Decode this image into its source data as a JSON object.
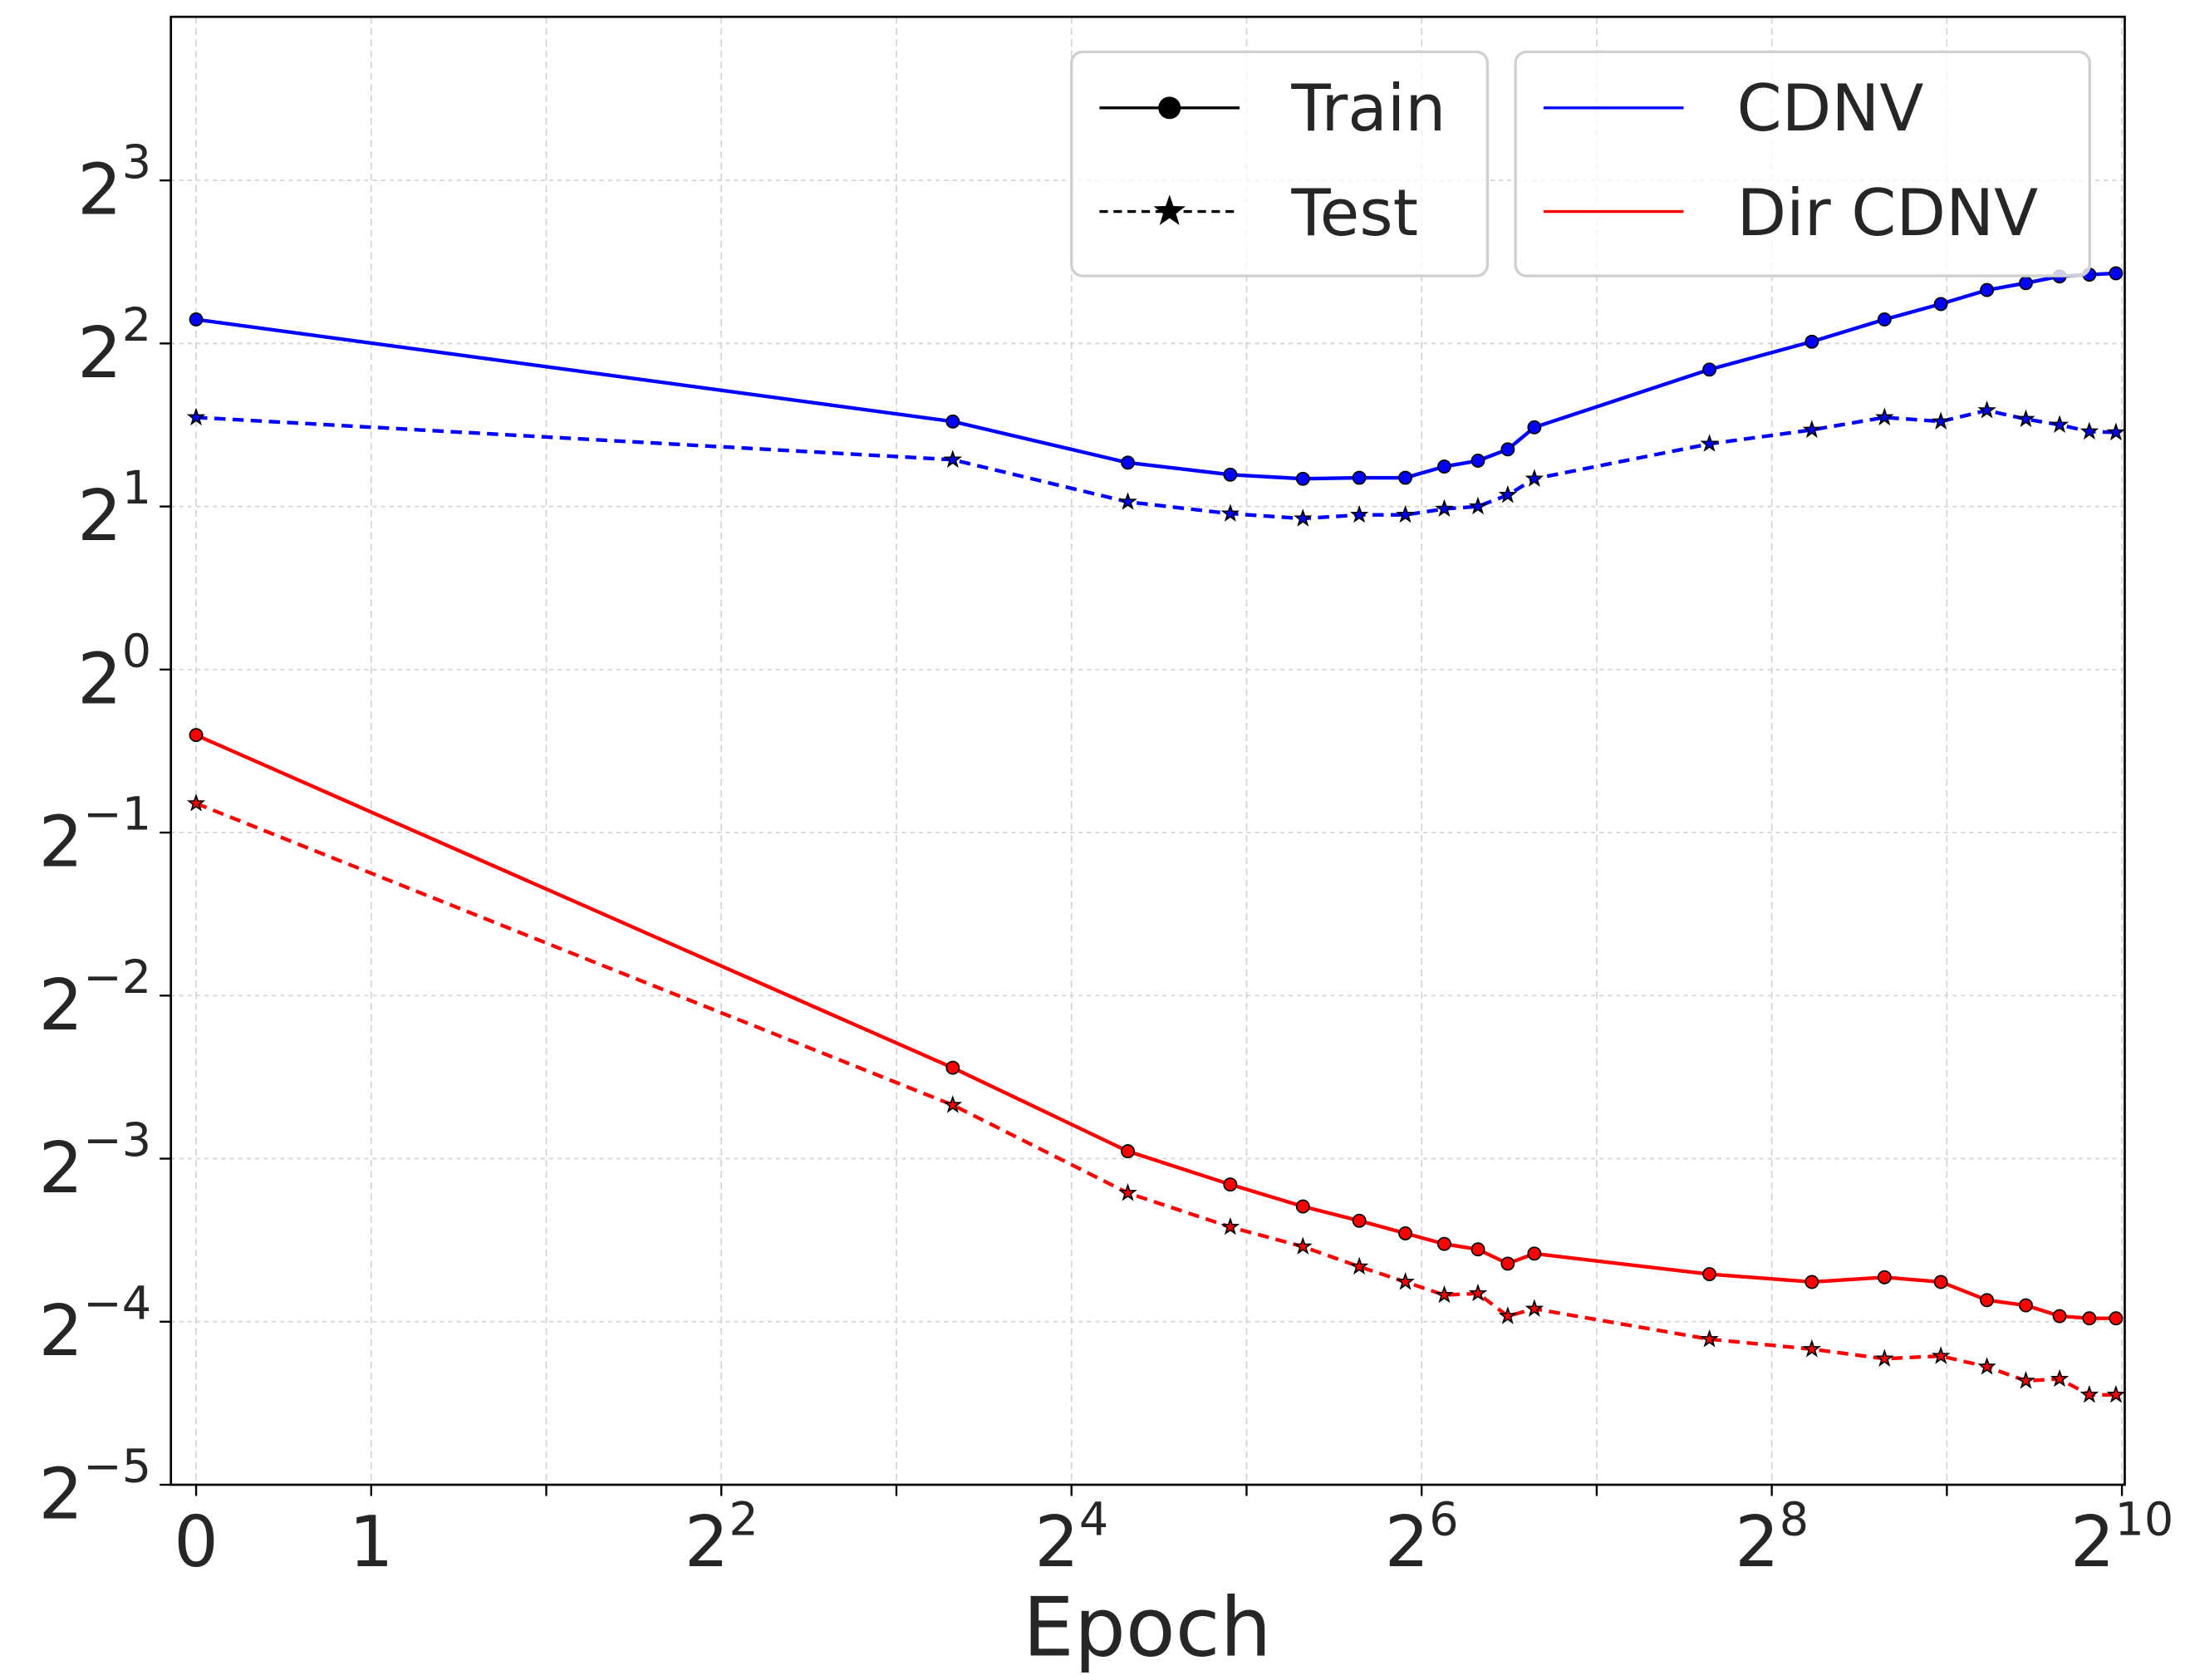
{
  "chart_data": {
    "type": "line",
    "xlabel": "Epoch",
    "ylabel": "",
    "xscale": "symlog base 2 (linear between 0 and 1)",
    "yscale": "log base 2",
    "xlim": [
      0,
      1024
    ],
    "ylim": [
      0.03125,
      16
    ],
    "grid": true,
    "legend_placement": "top-right",
    "x_ticks": [
      {
        "base": "0",
        "exp": ""
      },
      {
        "base": "1",
        "exp": ""
      },
      {
        "base": "2",
        "exp": "2"
      },
      {
        "base": "2",
        "exp": "4"
      },
      {
        "base": "2",
        "exp": "6"
      },
      {
        "base": "2",
        "exp": "8"
      },
      {
        "base": "2",
        "exp": "10"
      }
    ],
    "y_ticks": [
      {
        "base": "2",
        "exp": "3"
      },
      {
        "base": "2",
        "exp": "2"
      },
      {
        "base": "2",
        "exp": "1"
      },
      {
        "base": "2",
        "exp": "0"
      },
      {
        "base": "2",
        "exp": "−1"
      },
      {
        "base": "2",
        "exp": "−2"
      },
      {
        "base": "2",
        "exp": "−3"
      },
      {
        "base": "2",
        "exp": "−4"
      },
      {
        "base": "2",
        "exp": "−5"
      }
    ],
    "x": [
      0,
      10,
      20,
      30,
      40,
      50,
      60,
      70,
      80,
      90,
      100,
      200,
      300,
      400,
      500,
      600,
      700,
      800,
      900,
      1000
    ],
    "series": [
      {
        "metric": "CDNV",
        "split": "Train",
        "color": "#0000ff",
        "dash": "solid",
        "marker": "circle",
        "values": [
          4.43,
          2.87,
          2.41,
          2.29,
          2.25,
          2.26,
          2.26,
          2.37,
          2.43,
          2.55,
          2.8,
          3.58,
          4.03,
          4.43,
          4.73,
          5.02,
          5.17,
          5.32,
          5.36,
          5.39
        ]
      },
      {
        "metric": "CDNV",
        "split": "Test",
        "color": "#0000ff",
        "dash": "dashed",
        "marker": "star",
        "values": [
          2.92,
          2.44,
          2.04,
          1.94,
          1.9,
          1.93,
          1.93,
          1.98,
          2.0,
          2.1,
          2.25,
          2.61,
          2.77,
          2.92,
          2.87,
          3.01,
          2.9,
          2.83,
          2.75,
          2.74
        ]
      },
      {
        "metric": "Dir CDNV",
        "split": "Train",
        "color": "#ff0000",
        "dash": "solid",
        "marker": "circle",
        "values": [
          0.757,
          0.184,
          0.129,
          0.112,
          0.102,
          0.096,
          0.091,
          0.087,
          0.085,
          0.08,
          0.0835,
          0.0765,
          0.074,
          0.0755,
          0.074,
          0.0685,
          0.067,
          0.064,
          0.0634,
          0.0634
        ]
      },
      {
        "metric": "Dir CDNV",
        "split": "Test",
        "color": "#ff0000",
        "dash": "dashed",
        "marker": "star",
        "values": [
          0.566,
          0.157,
          0.108,
          0.0935,
          0.086,
          0.079,
          0.074,
          0.07,
          0.0705,
          0.064,
          0.066,
          0.058,
          0.0556,
          0.0534,
          0.054,
          0.0516,
          0.0486,
          0.049,
          0.0458,
          0.0458
        ]
      }
    ],
    "legend_style": [
      {
        "label": "Train",
        "marker": "circle",
        "dash": "solid"
      },
      {
        "label": "Test",
        "marker": "star",
        "dash": "dashed"
      }
    ],
    "legend_color": [
      {
        "label": "CDNV",
        "color": "#0000ff"
      },
      {
        "label": "Dir CDNV",
        "color": "#ff0000"
      }
    ]
  }
}
